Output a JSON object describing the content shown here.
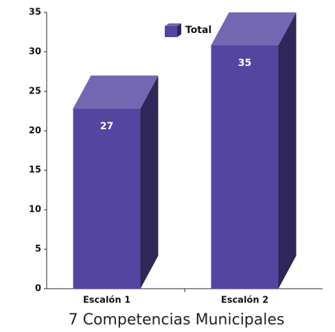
{
  "chart_data": {
    "type": "bar3d",
    "title": "7 Competencias Municipales",
    "categories": [
      "Escalón 1",
      "Escalón 2"
    ],
    "series": [
      {
        "name": "Total",
        "color": "#5446a0",
        "values": [
          27,
          35
        ]
      }
    ],
    "ylim": [
      0,
      35
    ],
    "yticks": [
      0,
      5,
      10,
      15,
      20,
      25,
      30,
      35
    ],
    "legend": "top"
  }
}
